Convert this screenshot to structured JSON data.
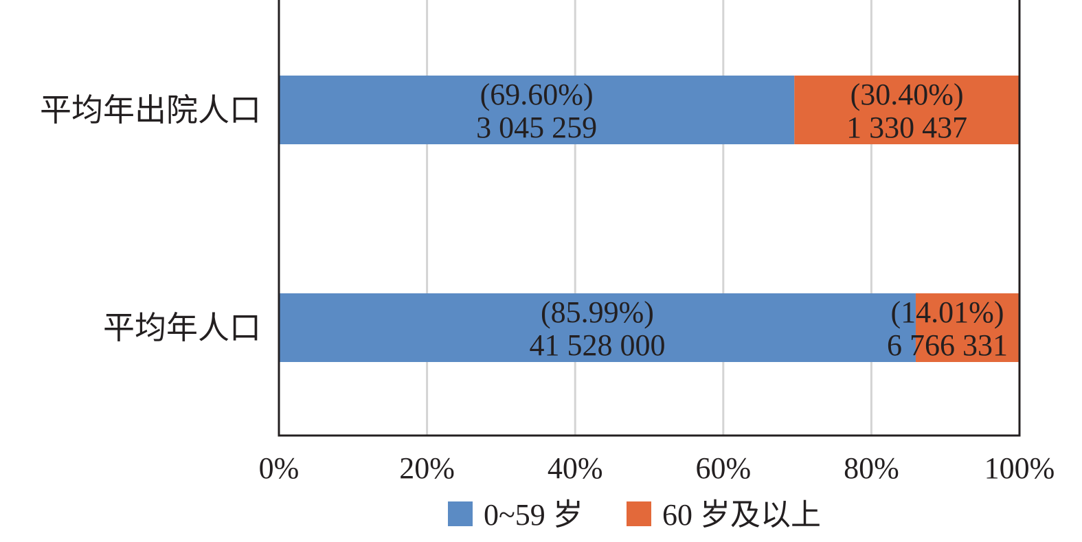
{
  "chart_data": {
    "type": "bar",
    "orientation": "horizontal",
    "stacking": "percent",
    "categories": [
      "平均年出院人口",
      "平均年人口"
    ],
    "series": [
      {
        "name": "0~59 岁",
        "color": "#5b8bc4",
        "values": [
          3045259,
          41528000
        ],
        "percent": [
          69.6,
          85.99
        ],
        "value_labels": [
          "3 045 259",
          "41 528 000"
        ],
        "percent_labels": [
          "(69.60%)",
          "(85.99%)"
        ]
      },
      {
        "name": "60 岁及以上",
        "color": "#e3693a",
        "values": [
          1330437,
          6766331
        ],
        "percent": [
          30.4,
          14.01
        ],
        "value_labels": [
          "1 330 437",
          "6 766 331"
        ],
        "percent_labels": [
          "(30.40%)",
          "(14.01%)"
        ]
      }
    ],
    "xlim": [
      0,
      100
    ],
    "x_ticks": [
      0,
      20,
      40,
      60,
      80,
      100
    ],
    "x_tick_labels": [
      "0%",
      "20%",
      "40%",
      "60%",
      "80%",
      "100%"
    ],
    "grid": "vertical",
    "legend": "bottom",
    "title": "",
    "xlabel": "",
    "ylabel": ""
  }
}
